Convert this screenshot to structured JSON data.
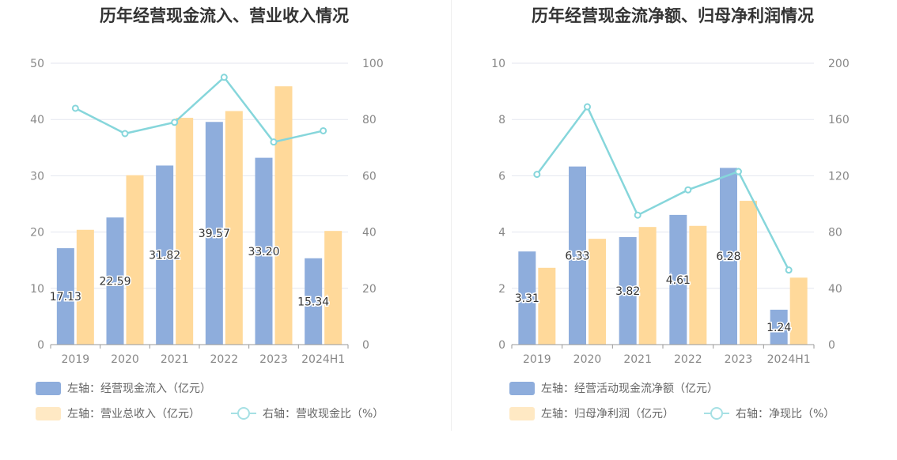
{
  "colors": {
    "bar_primary": "#8eaddc",
    "bar_secondary": "#ffd99a",
    "legend_secondary": "#ffe9c4",
    "line": "#86d6db",
    "grid": "#e3e6ef",
    "axis": "#999999"
  },
  "chart_data": [
    {
      "type": "bar",
      "title": "历年经营现金流入、营业收入情况",
      "categories": [
        "2019",
        "2020",
        "2021",
        "2022",
        "2023",
        "2024H1"
      ],
      "ylim_left": [
        0,
        50
      ],
      "yticks_left": [
        0,
        10,
        20,
        30,
        40,
        50
      ],
      "ylim_right": [
        0,
        100
      ],
      "yticks_right": [
        0,
        20,
        40,
        60,
        80,
        100
      ],
      "grid": true,
      "legend_position": "bottom-left",
      "series": [
        {
          "name": "左轴：经营现金流入（亿元）",
          "axis": "left",
          "kind": "bar",
          "values": [
            17.13,
            22.59,
            31.82,
            39.57,
            33.2,
            15.34
          ],
          "labels": [
            "17.13",
            "22.59",
            "31.82",
            "39.57",
            "33.20",
            "15.34"
          ]
        },
        {
          "name": "左轴：营业总收入（亿元）",
          "axis": "left",
          "kind": "bar",
          "values": [
            20.4,
            30.1,
            40.3,
            41.5,
            45.9,
            20.2
          ]
        },
        {
          "name": "右轴：营收现金比（%）",
          "axis": "right",
          "kind": "line",
          "values": [
            84,
            75,
            79,
            95,
            72,
            76
          ]
        }
      ]
    },
    {
      "type": "bar",
      "title": "历年经营现金流净额、归母净利润情况",
      "categories": [
        "2019",
        "2020",
        "2021",
        "2022",
        "2023",
        "2024H1"
      ],
      "ylim_left": [
        0,
        10
      ],
      "yticks_left": [
        0,
        2,
        4,
        6,
        8,
        10
      ],
      "ylim_right": [
        0,
        200
      ],
      "yticks_right": [
        0,
        40,
        80,
        120,
        160,
        200
      ],
      "grid": true,
      "legend_position": "bottom-left",
      "series": [
        {
          "name": "左轴：经营活动现金流净额（亿元）",
          "axis": "left",
          "kind": "bar",
          "values": [
            3.31,
            6.33,
            3.82,
            4.61,
            6.28,
            1.24
          ],
          "labels": [
            "3.31",
            "6.33",
            "3.82",
            "4.61",
            "6.28",
            "1.24"
          ]
        },
        {
          "name": "左轴：归母净利润（亿元）",
          "axis": "left",
          "kind": "bar",
          "values": [
            2.73,
            3.76,
            4.18,
            4.22,
            5.11,
            2.38
          ]
        },
        {
          "name": "右轴：净现比（%）",
          "axis": "right",
          "kind": "line",
          "values": [
            121,
            169,
            92,
            110,
            123,
            53
          ]
        }
      ]
    }
  ]
}
